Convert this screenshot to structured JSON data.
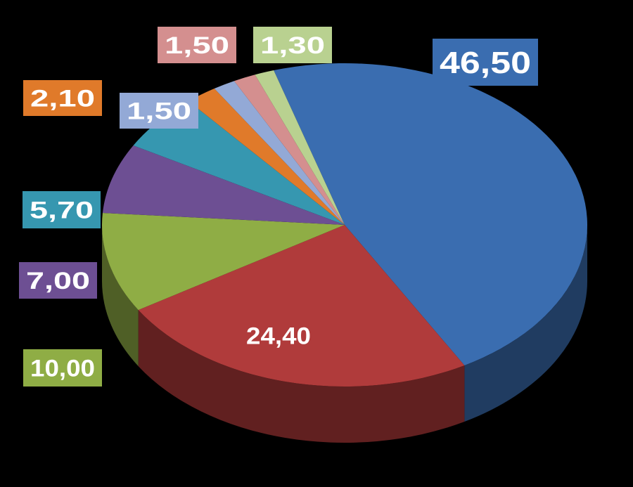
{
  "chart_data": {
    "type": "pie",
    "categories": [
      null,
      null,
      null,
      null,
      null,
      null,
      null,
      null,
      null
    ],
    "values": [
      46.5,
      24.4,
      10.0,
      7.0,
      5.7,
      2.1,
      1.5,
      1.5,
      1.3
    ],
    "value_labels": [
      "46,50",
      "24,40",
      "10,00",
      "7,00",
      "5,70",
      "2,10",
      "1,50",
      "1,50",
      "1,30"
    ],
    "colors": [
      "#3a6db0",
      "#b03b3b",
      "#8fad45",
      "#6d4f93",
      "#3697b0",
      "#e07a2a",
      "#93a9d6",
      "#d48f8f",
      "#b9d190"
    ]
  }
}
